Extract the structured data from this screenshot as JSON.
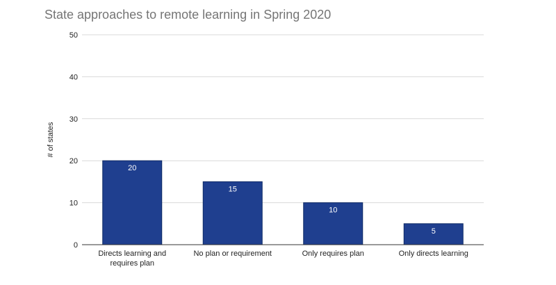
{
  "chart_data": {
    "type": "bar",
    "title": "State approaches to remote learning in Spring 2020",
    "xlabel": "",
    "ylabel": "# of states",
    "categories": [
      [
        "Directs learning and",
        "requires plan"
      ],
      [
        "No plan or requirement"
      ],
      [
        "Only requires plan"
      ],
      [
        "Only directs learning"
      ]
    ],
    "values": [
      20,
      15,
      10,
      5
    ],
    "data_labels": [
      "20",
      "15",
      "10",
      "5"
    ],
    "ylim": [
      0,
      50
    ],
    "yticks": [
      "0",
      "10",
      "20",
      "30",
      "40",
      "50"
    ],
    "ytick_values": [
      0,
      10,
      20,
      30,
      40,
      50
    ],
    "grid": true,
    "bar_color": "#1f3f8f",
    "bar_edge_color": "#0f2a66",
    "grid_color": "#d9d9d9",
    "axis_color": "#333333",
    "title_color": "#757575"
  }
}
